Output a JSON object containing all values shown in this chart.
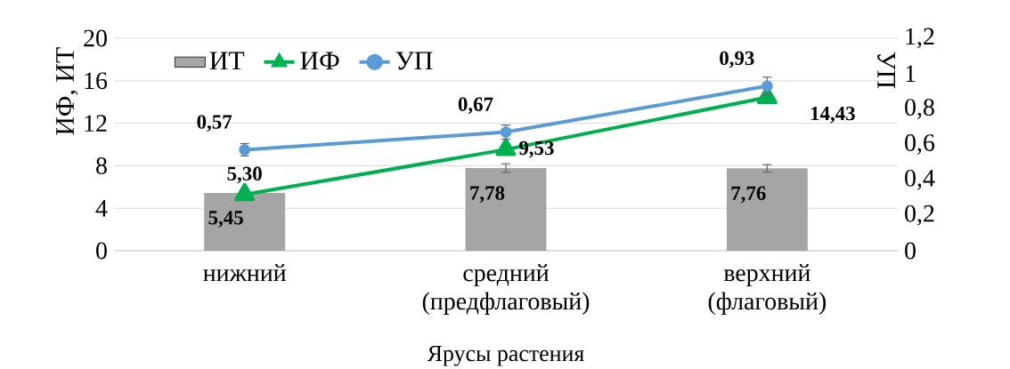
{
  "chart_data": {
    "type": "bar",
    "xlabel": "Ярусы растения",
    "ylabel": "ИФ, ИТ",
    "y2label": "УП",
    "categories": [
      "нижний",
      "средний (предфлаговый)",
      "верхний (флаговый)"
    ],
    "series": [
      {
        "name": "ИТ",
        "color": "#a5a5a5",
        "values": [
          5.45,
          7.78,
          7.76
        ],
        "errors": [
          null,
          0.4,
          0.35
        ],
        "value_labels": [
          "5,45",
          "7,78",
          "7,76"
        ]
      },
      {
        "name": "ИФ",
        "type": "line",
        "color": "#00b050",
        "marker": "triangle",
        "values": [
          5.3,
          9.53,
          14.43
        ],
        "value_labels": [
          "5,30",
          "9,53",
          "14,43"
        ]
      },
      {
        "name": "УП",
        "type": "line",
        "color": "#5b9bd5",
        "marker": "circle",
        "axis": "y2",
        "values": [
          0.57,
          0.67,
          0.93
        ],
        "errors": [
          0.035,
          0.04,
          0.05
        ],
        "value_labels": [
          "0,57",
          "0,67",
          "0,93"
        ]
      }
    ],
    "ylim": [
      0,
      20
    ],
    "yticks": [
      0,
      4,
      8,
      12,
      16,
      20
    ],
    "y2lim": [
      0,
      1.2
    ],
    "y2ticks": [
      0,
      {
        "value": 0.2,
        "label": "0,2"
      },
      {
        "value": 0.4,
        "label": "0,4"
      },
      {
        "value": 0.6,
        "label": "0,6"
      },
      {
        "value": 0.8,
        "label": "0,8"
      },
      1,
      {
        "value": 1.2,
        "label": "1,2"
      }
    ],
    "grid": "y",
    "legend": "top left"
  }
}
